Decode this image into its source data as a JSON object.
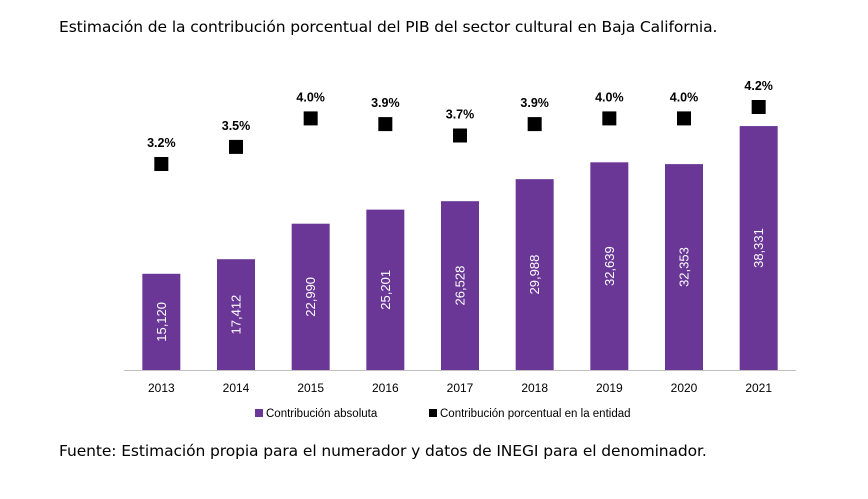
{
  "title": "Estimación de la contribución porcentual del PIB del sector cultural en Baja California.",
  "source": "Fuente: Estimación propia para el numerador y datos de INEGI para el denominador.",
  "colors": {
    "bar": "#6a3796",
    "marker": "#000000",
    "axis": "#bfbfbf"
  },
  "chart_data": {
    "type": "bar",
    "title": "",
    "xlabel": "",
    "ylabel": "",
    "categories": [
      "2013",
      "2014",
      "2015",
      "2016",
      "2017",
      "2018",
      "2019",
      "2020",
      "2021"
    ],
    "series": [
      {
        "name": "Contribución absoluta",
        "type": "bar",
        "values": [
          15120,
          17412,
          22990,
          25201,
          26528,
          29988,
          32639,
          32353,
          38331
        ],
        "labels": [
          "15,120",
          "17,412",
          "22,990",
          "25,201",
          "26,528",
          "29,988",
          "32,639",
          "32,353",
          "38,331"
        ]
      },
      {
        "name": "Contribución porcentual en la entidad",
        "type": "scatter",
        "marker": "square",
        "values": [
          3.2,
          3.5,
          4.0,
          3.9,
          3.7,
          3.9,
          4.0,
          4.0,
          4.2
        ],
        "labels": [
          "3.2%",
          "3.5%",
          "4.0%",
          "3.9%",
          "3.7%",
          "3.9%",
          "4.0%",
          "4.0%",
          "4.2%"
        ]
      }
    ],
    "legend_position": "bottom",
    "grid": false
  }
}
